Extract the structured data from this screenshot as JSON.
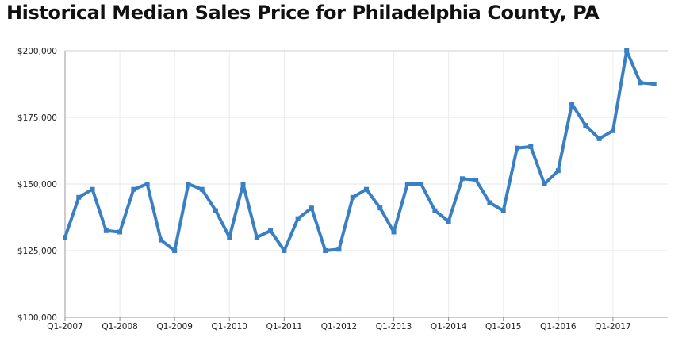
{
  "title": "Historical Median Sales Price for Philadelphia County, PA",
  "chart_data": {
    "type": "line",
    "title": "Historical Median Sales Price for Philadelphia County, PA",
    "xlabel": "",
    "ylabel": "",
    "x": [
      "Q1-2007",
      "Q2-2007",
      "Q3-2007",
      "Q4-2007",
      "Q1-2008",
      "Q2-2008",
      "Q3-2008",
      "Q4-2008",
      "Q1-2009",
      "Q2-2009",
      "Q3-2009",
      "Q4-2009",
      "Q1-2010",
      "Q2-2010",
      "Q3-2010",
      "Q4-2010",
      "Q1-2011",
      "Q2-2011",
      "Q3-2011",
      "Q4-2011",
      "Q1-2012",
      "Q2-2012",
      "Q3-2012",
      "Q4-2012",
      "Q1-2013",
      "Q2-2013",
      "Q3-2013",
      "Q4-2013",
      "Q1-2014",
      "Q2-2014",
      "Q3-2014",
      "Q4-2014",
      "Q1-2015",
      "Q2-2015",
      "Q3-2015",
      "Q4-2015",
      "Q1-2016",
      "Q2-2016",
      "Q3-2016",
      "Q4-2016",
      "Q1-2017",
      "Q2-2017",
      "Q3-2017",
      "Q4-2017"
    ],
    "x_tick_labels": [
      "Q1-2007",
      "Q1-2008",
      "Q1-2009",
      "Q1-2010",
      "Q1-2011",
      "Q1-2012",
      "Q1-2013",
      "Q1-2014",
      "Q1-2015",
      "Q1-2016",
      "Q1-2017"
    ],
    "y_tick_labels": [
      "$100,000",
      "$125,000",
      "$150,000",
      "$175,000",
      "$200,000"
    ],
    "y_ticks": [
      100000,
      125000,
      150000,
      175000,
      200000
    ],
    "ylim": [
      100000,
      200000
    ],
    "grid": true,
    "legend": "none",
    "series": [
      {
        "values": [
          130000,
          145000,
          148000,
          132500,
          132000,
          148000,
          150000,
          129000,
          125000,
          150000,
          148000,
          140000,
          130000,
          150000,
          130000,
          132500,
          125000,
          137000,
          141000,
          125000,
          125500,
          145000,
          148000,
          141000,
          132000,
          150000,
          150000,
          140000,
          136000,
          152000,
          151500,
          143000,
          140000,
          163500,
          164000,
          150000,
          155000,
          180000,
          172000,
          167000,
          170000,
          200000,
          188000,
          187500
        ],
        "color": "#3a7fc4"
      }
    ]
  }
}
